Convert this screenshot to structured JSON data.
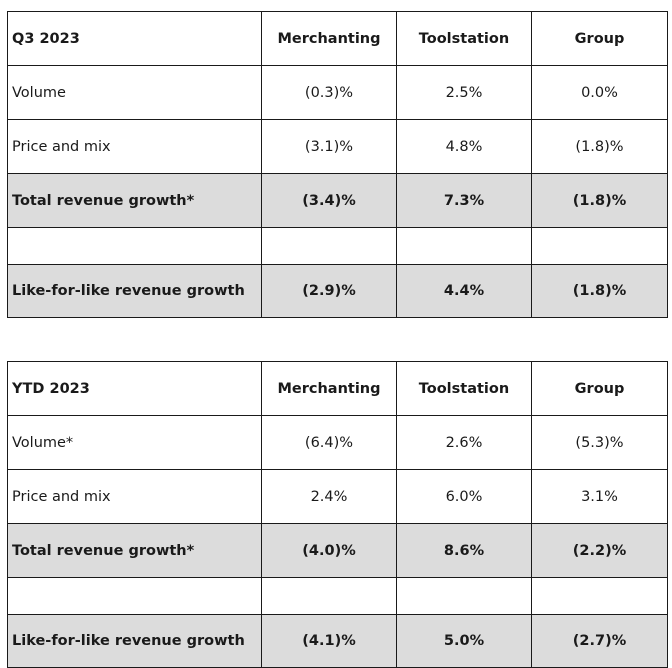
{
  "tables": [
    {
      "header": [
        "Q3 2023",
        "Merchanting",
        "Toolstation",
        "Group"
      ],
      "rows": [
        {
          "label": "Volume",
          "values": [
            "(0.3)%",
            "2.5%",
            "0.0%"
          ]
        },
        {
          "label": "Price and mix",
          "values": [
            "(3.1)%",
            "4.8%",
            "(1.8)%"
          ]
        },
        {
          "label": "Total revenue growth*",
          "values": [
            "(3.4)%",
            "7.3%",
            "(1.8)%"
          ]
        },
        {
          "label": "Like-for-like revenue growth",
          "values": [
            "(2.9)%",
            "4.4%",
            "(1.8)%"
          ]
        }
      ]
    },
    {
      "header": [
        "YTD 2023",
        "Merchanting",
        "Toolstation",
        "Group"
      ],
      "rows": [
        {
          "label": "Volume*",
          "values": [
            "(6.4)%",
            "2.6%",
            "(5.3)%"
          ]
        },
        {
          "label": "Price and mix",
          "values": [
            "2.4%",
            "6.0%",
            "3.1%"
          ]
        },
        {
          "label": "Total revenue growth*",
          "values": [
            "(4.0)%",
            "8.6%",
            "(2.2)%"
          ]
        },
        {
          "label": "Like-for-like revenue growth",
          "values": [
            "(4.1)%",
            "5.0%",
            "(2.7)%"
          ]
        }
      ]
    }
  ]
}
